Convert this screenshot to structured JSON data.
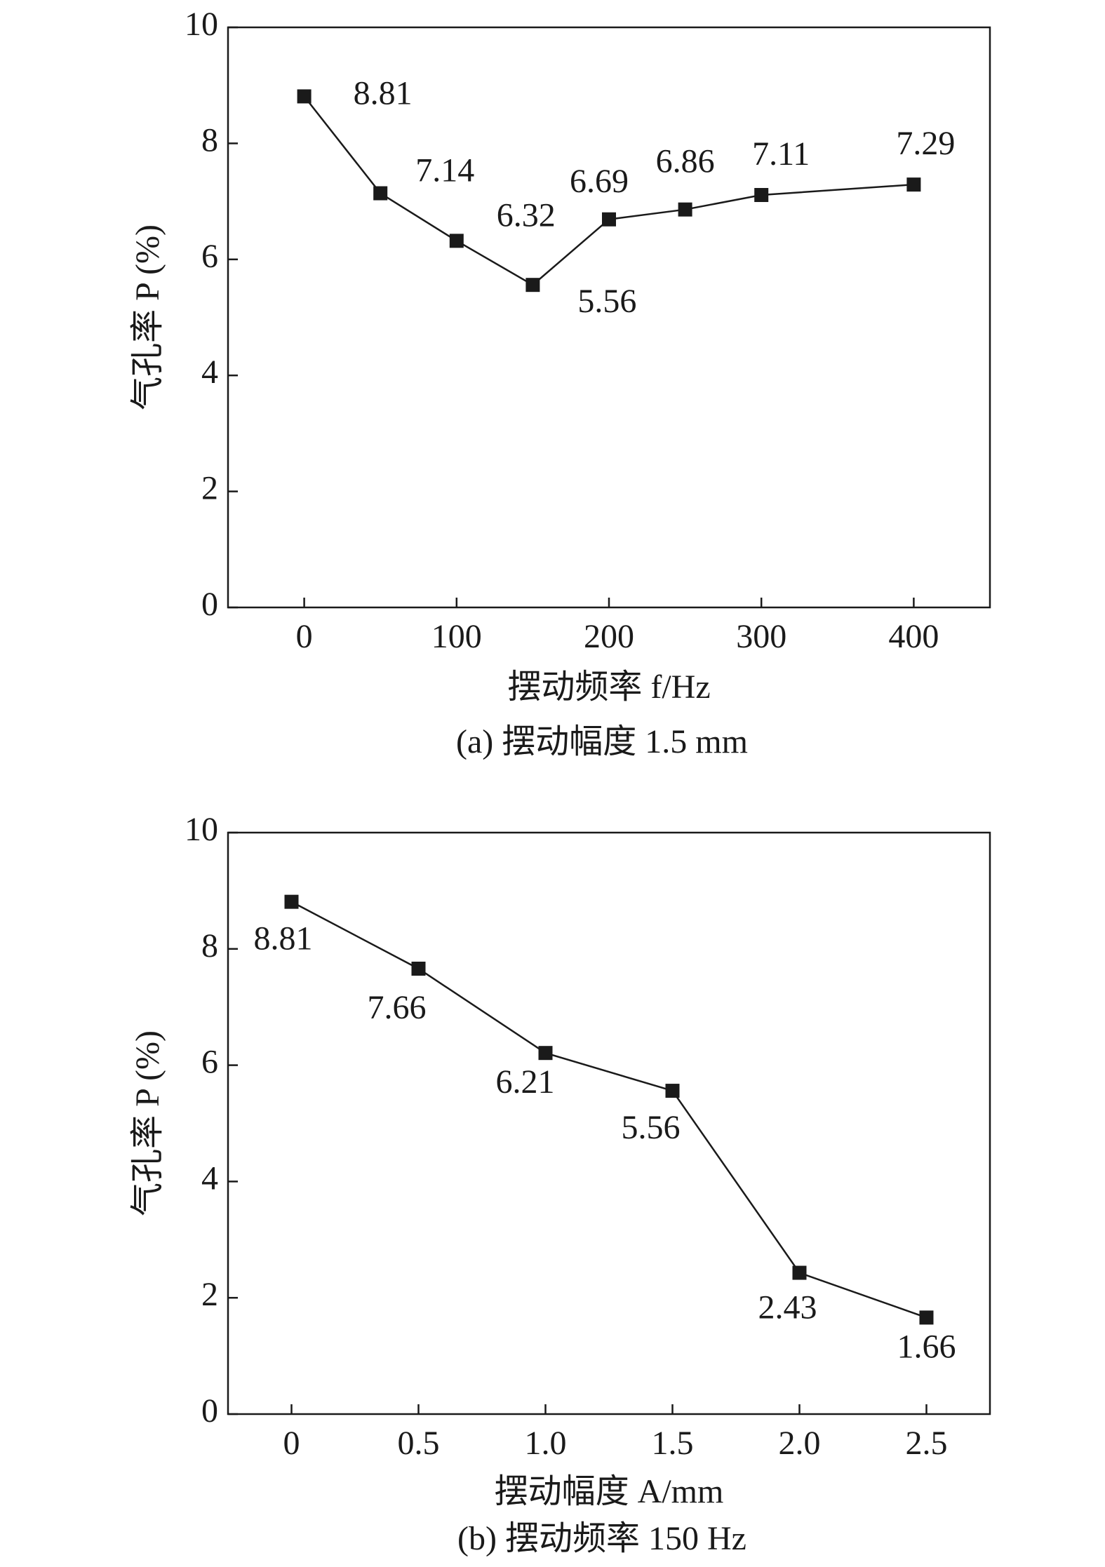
{
  "chart_data": [
    {
      "type": "line",
      "caption": "(a) 摆动幅度 1.5 mm",
      "xlabel": "摆动频率 f/Hz",
      "ylabel": "气孔率 P (%)",
      "x": [
        0,
        50,
        100,
        150,
        200,
        250,
        300,
        400
      ],
      "values": [
        8.81,
        7.14,
        6.32,
        5.56,
        6.69,
        6.86,
        7.11,
        7.29
      ],
      "color": "#1a1a1a",
      "xlim": [
        -50,
        450
      ],
      "xticks": [
        0,
        100,
        200,
        300,
        400
      ],
      "ylim": [
        0,
        10
      ],
      "yticks": [
        0,
        2,
        4,
        6,
        8,
        10
      ]
    },
    {
      "type": "line",
      "caption": "(b) 摆动频率 150 Hz",
      "xlabel": "摆动幅度 A/mm",
      "ylabel": "气孔率 P (%)",
      "x": [
        0,
        0.5,
        1.0,
        1.5,
        2.0,
        2.5
      ],
      "values": [
        8.81,
        7.66,
        6.21,
        5.56,
        2.43,
        1.66
      ],
      "color": "#1a1a1a",
      "xlim": [
        -0.25,
        2.75
      ],
      "xticks": [
        0,
        0.5,
        {
          "value": 1,
          "label": "1.0"
        },
        1.5,
        {
          "value": 2,
          "label": "2.0"
        },
        2.5
      ],
      "ylim": [
        0,
        10
      ],
      "yticks": [
        0,
        2,
        4,
        6,
        8,
        10
      ]
    }
  ]
}
